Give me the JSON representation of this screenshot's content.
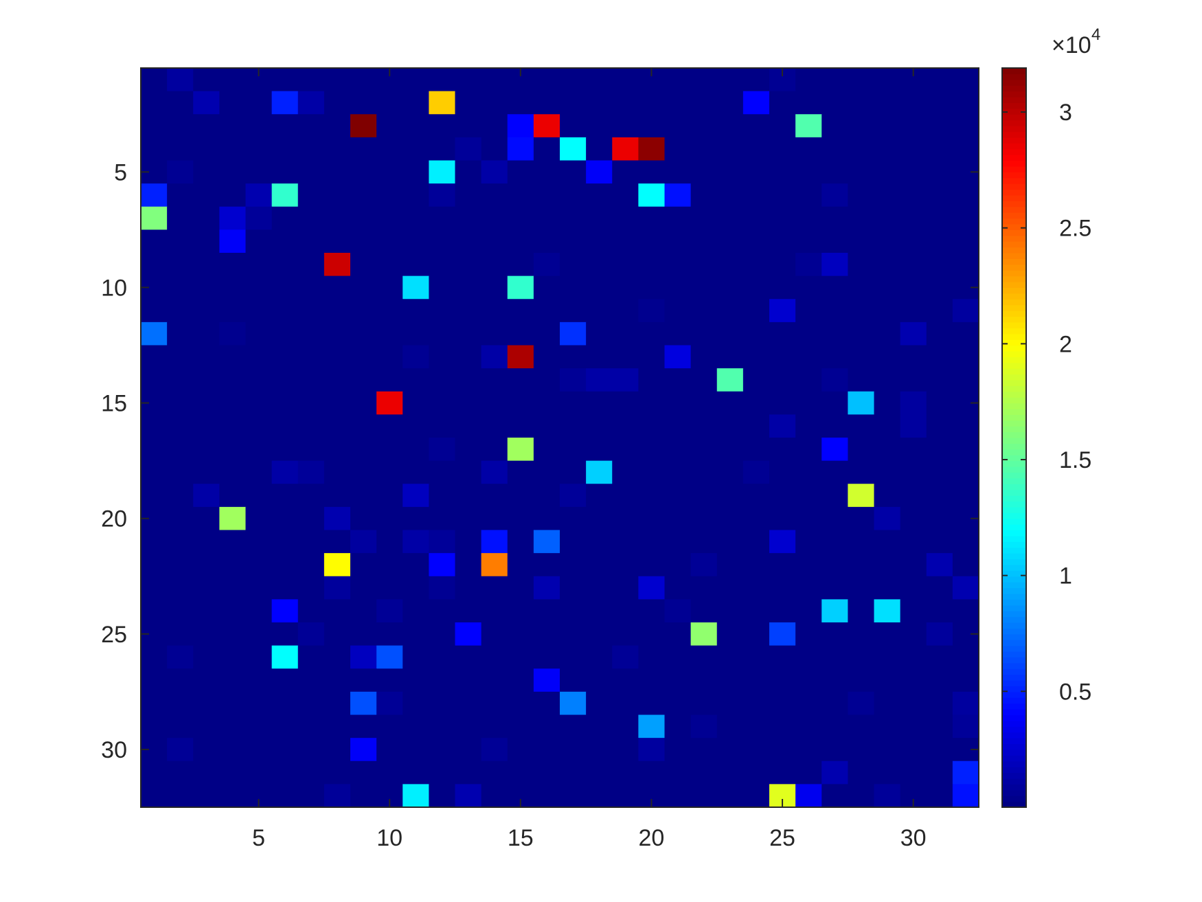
{
  "chart_data": {
    "type": "heatmap",
    "colormap": "jet",
    "xlim": [
      0.5,
      32.5
    ],
    "xticks": [
      5,
      10,
      15,
      20,
      25,
      30
    ],
    "ylim": [
      0.5,
      32.5
    ],
    "yticks": [
      5,
      10,
      15,
      20,
      25,
      30
    ],
    "y_reversed": true,
    "clim": [
      0,
      31900
    ],
    "colorbar_ticks": [
      {
        "value": 5000,
        "label": "0.5"
      },
      {
        "value": 10000,
        "label": "1"
      },
      {
        "value": 15000,
        "label": "1.5"
      },
      {
        "value": 20000,
        "label": "2"
      },
      {
        "value": 25000,
        "label": "2.5"
      },
      {
        "value": 30000,
        "label": "3"
      }
    ],
    "colorbar_exponent_base": "×10",
    "colorbar_exponent": "4",
    "z": [
      [
        200,
        1000,
        200,
        200,
        200,
        200,
        200,
        200,
        200,
        200,
        200,
        200,
        200,
        200,
        200,
        200,
        200,
        200,
        200,
        200,
        200,
        200,
        200,
        200,
        600,
        200,
        200,
        200,
        200,
        200,
        200,
        200
      ],
      [
        200,
        200,
        1500,
        200,
        200,
        5000,
        1200,
        200,
        200,
        200,
        200,
        21500,
        200,
        200,
        200,
        200,
        200,
        200,
        200,
        200,
        200,
        200,
        200,
        4000,
        200,
        200,
        200,
        200,
        200,
        200,
        200,
        200
      ],
      [
        200,
        200,
        200,
        200,
        200,
        200,
        200,
        200,
        31900,
        200,
        200,
        200,
        200,
        200,
        4000,
        28500,
        200,
        200,
        200,
        200,
        200,
        200,
        200,
        200,
        200,
        14500,
        200,
        200,
        200,
        200,
        200,
        200
      ],
      [
        200,
        200,
        200,
        200,
        200,
        200,
        200,
        200,
        200,
        200,
        200,
        200,
        800,
        200,
        4300,
        200,
        12000,
        200,
        28500,
        31500,
        200,
        200,
        200,
        200,
        200,
        200,
        200,
        200,
        200,
        200,
        200,
        200
      ],
      [
        200,
        600,
        200,
        200,
        200,
        200,
        200,
        200,
        200,
        200,
        200,
        11500,
        200,
        1200,
        200,
        200,
        200,
        3800,
        200,
        200,
        200,
        200,
        200,
        200,
        200,
        200,
        200,
        200,
        200,
        200,
        200,
        200
      ],
      [
        5000,
        200,
        200,
        200,
        1500,
        13500,
        200,
        200,
        200,
        200,
        200,
        800,
        200,
        200,
        200,
        200,
        200,
        200,
        200,
        12000,
        4500,
        200,
        200,
        200,
        200,
        200,
        800,
        200,
        200,
        200,
        200,
        200
      ],
      [
        16000,
        200,
        200,
        2500,
        800,
        200,
        200,
        200,
        200,
        200,
        200,
        200,
        200,
        200,
        200,
        200,
        200,
        200,
        200,
        200,
        200,
        200,
        200,
        200,
        200,
        200,
        200,
        200,
        200,
        200,
        200,
        200
      ],
      [
        200,
        200,
        200,
        3800,
        200,
        200,
        200,
        200,
        200,
        200,
        200,
        200,
        200,
        200,
        200,
        200,
        200,
        200,
        200,
        200,
        200,
        200,
        200,
        200,
        200,
        200,
        200,
        200,
        200,
        200,
        200,
        200
      ],
      [
        200,
        200,
        200,
        200,
        200,
        200,
        200,
        29500,
        200,
        200,
        200,
        200,
        200,
        200,
        200,
        600,
        200,
        200,
        200,
        200,
        200,
        200,
        200,
        200,
        200,
        600,
        2000,
        200,
        200,
        200,
        200,
        200
      ],
      [
        200,
        200,
        200,
        200,
        200,
        200,
        200,
        200,
        200,
        200,
        11000,
        200,
        200,
        200,
        13500,
        200,
        200,
        200,
        200,
        200,
        200,
        200,
        200,
        200,
        200,
        200,
        200,
        200,
        200,
        200,
        200,
        200
      ],
      [
        200,
        200,
        200,
        200,
        200,
        200,
        200,
        200,
        200,
        200,
        200,
        200,
        200,
        200,
        200,
        200,
        200,
        200,
        200,
        500,
        200,
        200,
        200,
        200,
        2500,
        200,
        200,
        200,
        200,
        200,
        200,
        1000
      ],
      [
        7500,
        200,
        200,
        500,
        200,
        200,
        200,
        200,
        200,
        200,
        200,
        200,
        200,
        200,
        200,
        200,
        5500,
        200,
        200,
        200,
        200,
        200,
        200,
        200,
        200,
        200,
        200,
        200,
        200,
        1500,
        200,
        200
      ],
      [
        200,
        200,
        200,
        200,
        200,
        200,
        200,
        200,
        200,
        200,
        600,
        200,
        200,
        1200,
        30500,
        200,
        200,
        200,
        200,
        200,
        3000,
        200,
        200,
        200,
        200,
        200,
        200,
        200,
        200,
        200,
        200,
        200
      ],
      [
        200,
        200,
        200,
        200,
        200,
        200,
        200,
        200,
        200,
        200,
        200,
        200,
        200,
        200,
        200,
        200,
        700,
        1200,
        1200,
        200,
        200,
        200,
        14500,
        200,
        200,
        200,
        600,
        200,
        200,
        200,
        200,
        200
      ],
      [
        200,
        200,
        200,
        200,
        200,
        200,
        200,
        200,
        200,
        28500,
        200,
        200,
        200,
        200,
        200,
        200,
        200,
        200,
        200,
        200,
        200,
        200,
        200,
        200,
        200,
        200,
        200,
        10000,
        200,
        1000,
        200,
        200
      ],
      [
        200,
        200,
        200,
        200,
        200,
        200,
        200,
        200,
        200,
        200,
        200,
        200,
        200,
        200,
        200,
        200,
        200,
        200,
        200,
        200,
        200,
        200,
        200,
        200,
        1200,
        200,
        200,
        200,
        200,
        1000,
        200,
        200
      ],
      [
        200,
        200,
        200,
        200,
        200,
        200,
        200,
        200,
        200,
        200,
        200,
        600,
        200,
        200,
        17000,
        200,
        200,
        200,
        200,
        200,
        200,
        200,
        200,
        200,
        200,
        200,
        4000,
        200,
        200,
        200,
        200,
        200
      ],
      [
        200,
        200,
        200,
        200,
        200,
        1200,
        800,
        200,
        200,
        200,
        200,
        200,
        200,
        1200,
        200,
        200,
        200,
        10500,
        200,
        200,
        200,
        200,
        200,
        600,
        200,
        200,
        200,
        200,
        200,
        200,
        200,
        200
      ],
      [
        200,
        200,
        1200,
        200,
        200,
        200,
        200,
        200,
        200,
        200,
        2000,
        200,
        200,
        200,
        200,
        200,
        800,
        200,
        200,
        200,
        200,
        200,
        200,
        200,
        200,
        200,
        200,
        18500,
        200,
        200,
        200,
        200
      ],
      [
        200,
        200,
        200,
        17000,
        200,
        200,
        200,
        1500,
        200,
        200,
        200,
        200,
        200,
        200,
        200,
        200,
        200,
        200,
        200,
        200,
        200,
        200,
        200,
        200,
        200,
        200,
        200,
        200,
        1200,
        200,
        200,
        200
      ],
      [
        200,
        200,
        200,
        200,
        200,
        200,
        200,
        200,
        1000,
        200,
        1200,
        800,
        200,
        4500,
        200,
        7000,
        200,
        200,
        200,
        200,
        200,
        200,
        200,
        200,
        2500,
        200,
        200,
        200,
        200,
        200,
        200,
        200
      ],
      [
        200,
        200,
        200,
        200,
        200,
        200,
        200,
        20000,
        200,
        200,
        200,
        4000,
        200,
        24000,
        200,
        200,
        200,
        200,
        200,
        200,
        200,
        700,
        200,
        200,
        200,
        200,
        200,
        200,
        200,
        200,
        1500,
        200
      ],
      [
        200,
        200,
        200,
        200,
        200,
        200,
        200,
        900,
        200,
        200,
        200,
        600,
        200,
        200,
        200,
        1500,
        200,
        200,
        200,
        2500,
        200,
        200,
        200,
        200,
        200,
        200,
        200,
        200,
        200,
        200,
        200,
        1500
      ],
      [
        200,
        200,
        200,
        200,
        200,
        4000,
        200,
        200,
        200,
        700,
        200,
        200,
        200,
        200,
        200,
        200,
        200,
        200,
        200,
        200,
        600,
        200,
        200,
        200,
        200,
        200,
        10500,
        200,
        11000,
        200,
        200,
        200
      ],
      [
        200,
        200,
        200,
        200,
        200,
        200,
        700,
        200,
        200,
        200,
        200,
        200,
        4000,
        200,
        200,
        200,
        200,
        200,
        200,
        200,
        200,
        16500,
        200,
        200,
        6000,
        200,
        200,
        200,
        200,
        200,
        900,
        200
      ],
      [
        200,
        600,
        200,
        200,
        200,
        12000,
        200,
        200,
        2000,
        6500,
        200,
        200,
        200,
        200,
        200,
        200,
        200,
        200,
        700,
        200,
        200,
        200,
        200,
        200,
        200,
        200,
        200,
        200,
        200,
        200,
        200,
        200
      ],
      [
        200,
        200,
        200,
        200,
        200,
        200,
        200,
        200,
        200,
        200,
        200,
        200,
        200,
        200,
        200,
        3800,
        200,
        200,
        200,
        200,
        200,
        200,
        200,
        200,
        200,
        200,
        200,
        200,
        200,
        200,
        200,
        200
      ],
      [
        200,
        200,
        200,
        200,
        200,
        200,
        200,
        200,
        6500,
        700,
        200,
        200,
        200,
        200,
        200,
        200,
        8000,
        200,
        200,
        200,
        200,
        200,
        200,
        200,
        200,
        200,
        200,
        600,
        200,
        200,
        200,
        1000
      ],
      [
        200,
        200,
        200,
        200,
        200,
        200,
        200,
        200,
        200,
        200,
        200,
        200,
        200,
        200,
        200,
        200,
        200,
        200,
        200,
        9000,
        200,
        600,
        200,
        200,
        200,
        200,
        200,
        200,
        200,
        200,
        200,
        800
      ],
      [
        200,
        700,
        200,
        200,
        200,
        200,
        200,
        200,
        3800,
        200,
        200,
        200,
        200,
        700,
        200,
        200,
        200,
        200,
        200,
        1000,
        200,
        200,
        200,
        200,
        200,
        200,
        200,
        200,
        200,
        200,
        200,
        200
      ],
      [
        200,
        200,
        200,
        200,
        200,
        200,
        200,
        200,
        200,
        200,
        200,
        200,
        200,
        200,
        200,
        200,
        200,
        200,
        200,
        200,
        200,
        200,
        200,
        200,
        200,
        200,
        1500,
        200,
        200,
        200,
        200,
        5000
      ],
      [
        200,
        200,
        200,
        200,
        200,
        200,
        200,
        800,
        200,
        200,
        11500,
        200,
        1500,
        200,
        200,
        200,
        200,
        200,
        200,
        200,
        200,
        200,
        200,
        200,
        19000,
        3500,
        200,
        200,
        800,
        200,
        200,
        4500
      ]
    ]
  }
}
